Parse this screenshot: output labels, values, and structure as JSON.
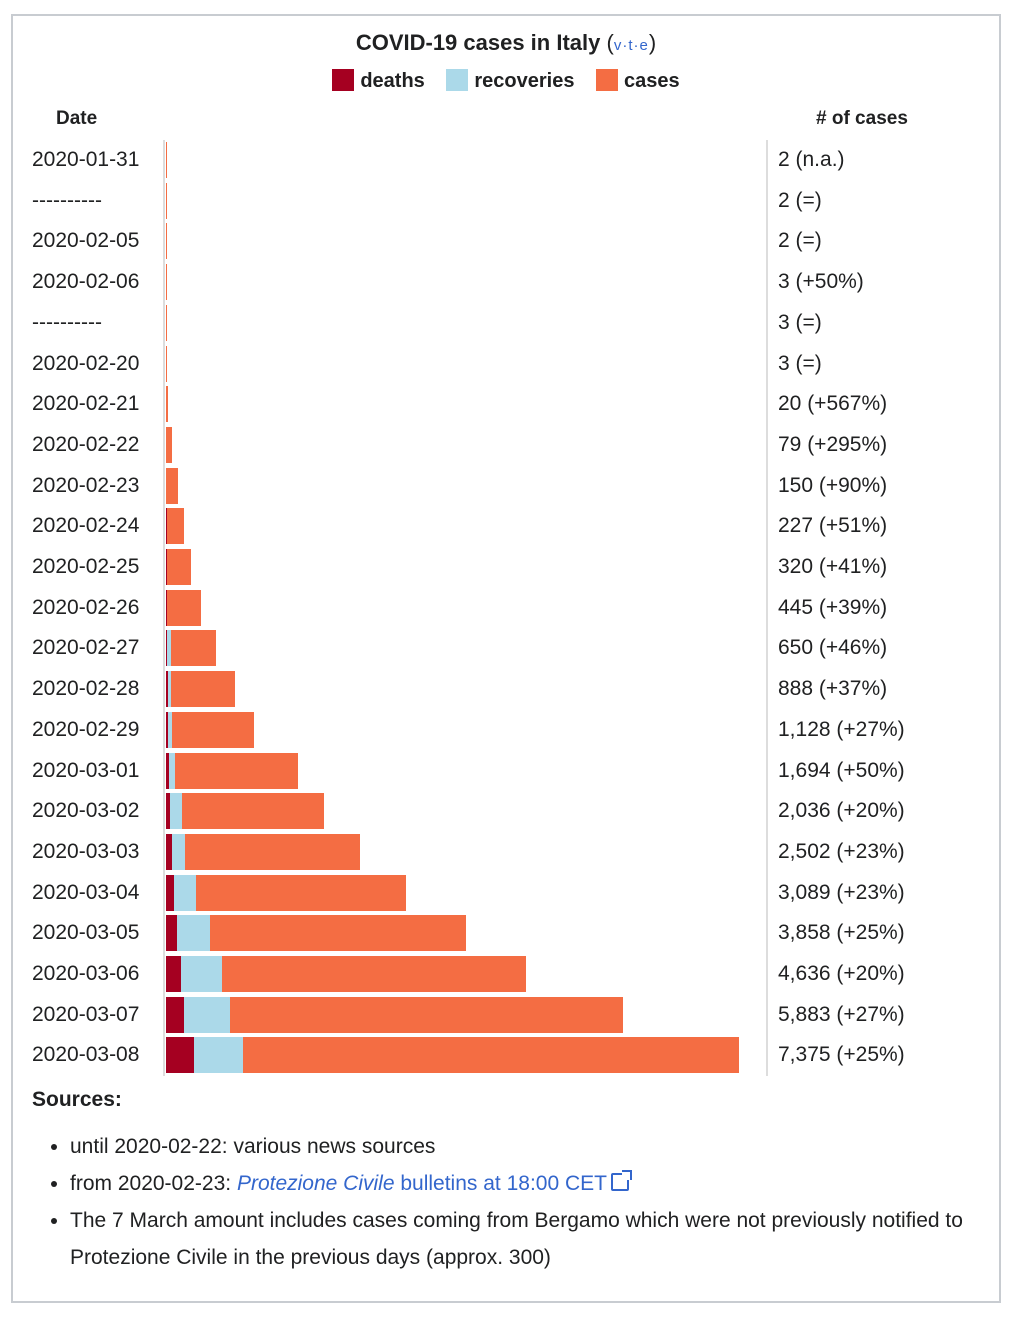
{
  "header": {
    "title": "COVID-19 cases in Italy",
    "vte": [
      "v",
      "t",
      "e"
    ]
  },
  "legend": [
    {
      "label": "deaths",
      "color": "#a50021"
    },
    {
      "label": "recoveries",
      "color": "#abd9e9"
    },
    {
      "label": "cases",
      "color": "#f46d43"
    }
  ],
  "columns": {
    "date": "Date",
    "count": "# of cases"
  },
  "chart_data": {
    "type": "bar",
    "orientation": "horizontal",
    "stacked": true,
    "rows": [
      {
        "date": "2020-01-31",
        "total": 2,
        "deaths": 0,
        "recoveries": 0,
        "label": "2 (n.a.)"
      },
      {
        "date": "----------",
        "total": 2,
        "deaths": 0,
        "recoveries": 0,
        "label": "2 (=)"
      },
      {
        "date": "2020-02-05",
        "total": 2,
        "deaths": 0,
        "recoveries": 0,
        "label": "2 (=)"
      },
      {
        "date": "2020-02-06",
        "total": 3,
        "deaths": 0,
        "recoveries": 0,
        "label": "3 (+50%)"
      },
      {
        "date": "----------",
        "total": 3,
        "deaths": 0,
        "recoveries": 0,
        "label": "3 (=)"
      },
      {
        "date": "2020-02-20",
        "total": 3,
        "deaths": 0,
        "recoveries": 0,
        "label": "3 (=)"
      },
      {
        "date": "2020-02-21",
        "total": 20,
        "deaths": 1,
        "recoveries": 0,
        "label": "20 (+567%)"
      },
      {
        "date": "2020-02-22",
        "total": 79,
        "deaths": 2,
        "recoveries": 0,
        "label": "79 (+295%)"
      },
      {
        "date": "2020-02-23",
        "total": 150,
        "deaths": 3,
        "recoveries": 0,
        "label": "150 (+90%)"
      },
      {
        "date": "2020-02-24",
        "total": 227,
        "deaths": 7,
        "recoveries": 1,
        "label": "227 (+51%)"
      },
      {
        "date": "2020-02-25",
        "total": 320,
        "deaths": 10,
        "recoveries": 1,
        "label": "320 (+41%)"
      },
      {
        "date": "2020-02-26",
        "total": 445,
        "deaths": 12,
        "recoveries": 3,
        "label": "445 (+39%)"
      },
      {
        "date": "2020-02-27",
        "total": 650,
        "deaths": 17,
        "recoveries": 45,
        "label": "650 (+46%)"
      },
      {
        "date": "2020-02-28",
        "total": 888,
        "deaths": 21,
        "recoveries": 46,
        "label": "888 (+37%)"
      },
      {
        "date": "2020-02-29",
        "total": 1128,
        "deaths": 29,
        "recoveries": 50,
        "label": "1,128 (+27%)"
      },
      {
        "date": "2020-03-01",
        "total": 1694,
        "deaths": 34,
        "recoveries": 83,
        "label": "1,694 (+50%)"
      },
      {
        "date": "2020-03-02",
        "total": 2036,
        "deaths": 52,
        "recoveries": 149,
        "label": "2,036 (+20%)"
      },
      {
        "date": "2020-03-03",
        "total": 2502,
        "deaths": 79,
        "recoveries": 160,
        "label": "2,502 (+23%)"
      },
      {
        "date": "2020-03-04",
        "total": 3089,
        "deaths": 107,
        "recoveries": 276,
        "label": "3,089 (+23%)"
      },
      {
        "date": "2020-03-05",
        "total": 3858,
        "deaths": 148,
        "recoveries": 414,
        "label": "3,858 (+25%)"
      },
      {
        "date": "2020-03-06",
        "total": 4636,
        "deaths": 197,
        "recoveries": 523,
        "label": "4,636 (+20%)"
      },
      {
        "date": "2020-03-07",
        "total": 5883,
        "deaths": 233,
        "recoveries": 589,
        "label": "5,883 (+27%)"
      },
      {
        "date": "2020-03-08",
        "total": 7375,
        "deaths": 366,
        "recoveries": 622,
        "label": "7,375 (+25%)"
      }
    ],
    "xlim": [
      0,
      7375
    ],
    "legend_position": "top"
  },
  "sources": {
    "heading": "Sources:",
    "items": [
      {
        "text": "until 2020-02-22: various news sources"
      },
      {
        "prefix": "from 2020-02-23: ",
        "link_italic": "Protezione Civile",
        "link_rest": " bulletins at 18:00 CET"
      },
      {
        "text": "The 7 March amount includes cases coming from Bergamo which were not previously notified to Protezione Civile in the previous days (approx. 300)"
      }
    ]
  }
}
